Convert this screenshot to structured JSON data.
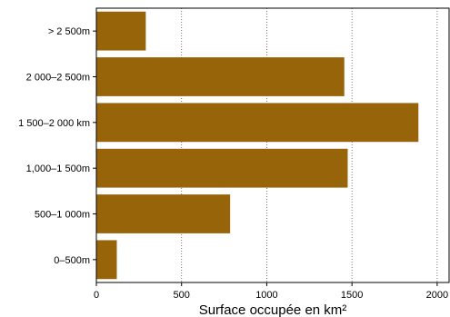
{
  "chart_data": {
    "type": "bar",
    "orientation": "horizontal",
    "categories": [
      "> 2 500m",
      "2 000–2 500m",
      "1 500–2 000 km",
      "1,000–1 500m",
      "500–1 000m",
      "0–500m"
    ],
    "values": [
      290,
      1455,
      1890,
      1475,
      785,
      120
    ],
    "xlim": [
      0,
      2070
    ],
    "xticks": [
      0,
      500,
      1000,
      1500,
      2000
    ],
    "xtick_labels": [
      "0",
      "500",
      "1000",
      "1500",
      "2000"
    ],
    "xlabel": "Surface occupée en km²",
    "ylabel": "",
    "title": "",
    "grid": "vertical dotted",
    "bar_color": "#98640a"
  }
}
